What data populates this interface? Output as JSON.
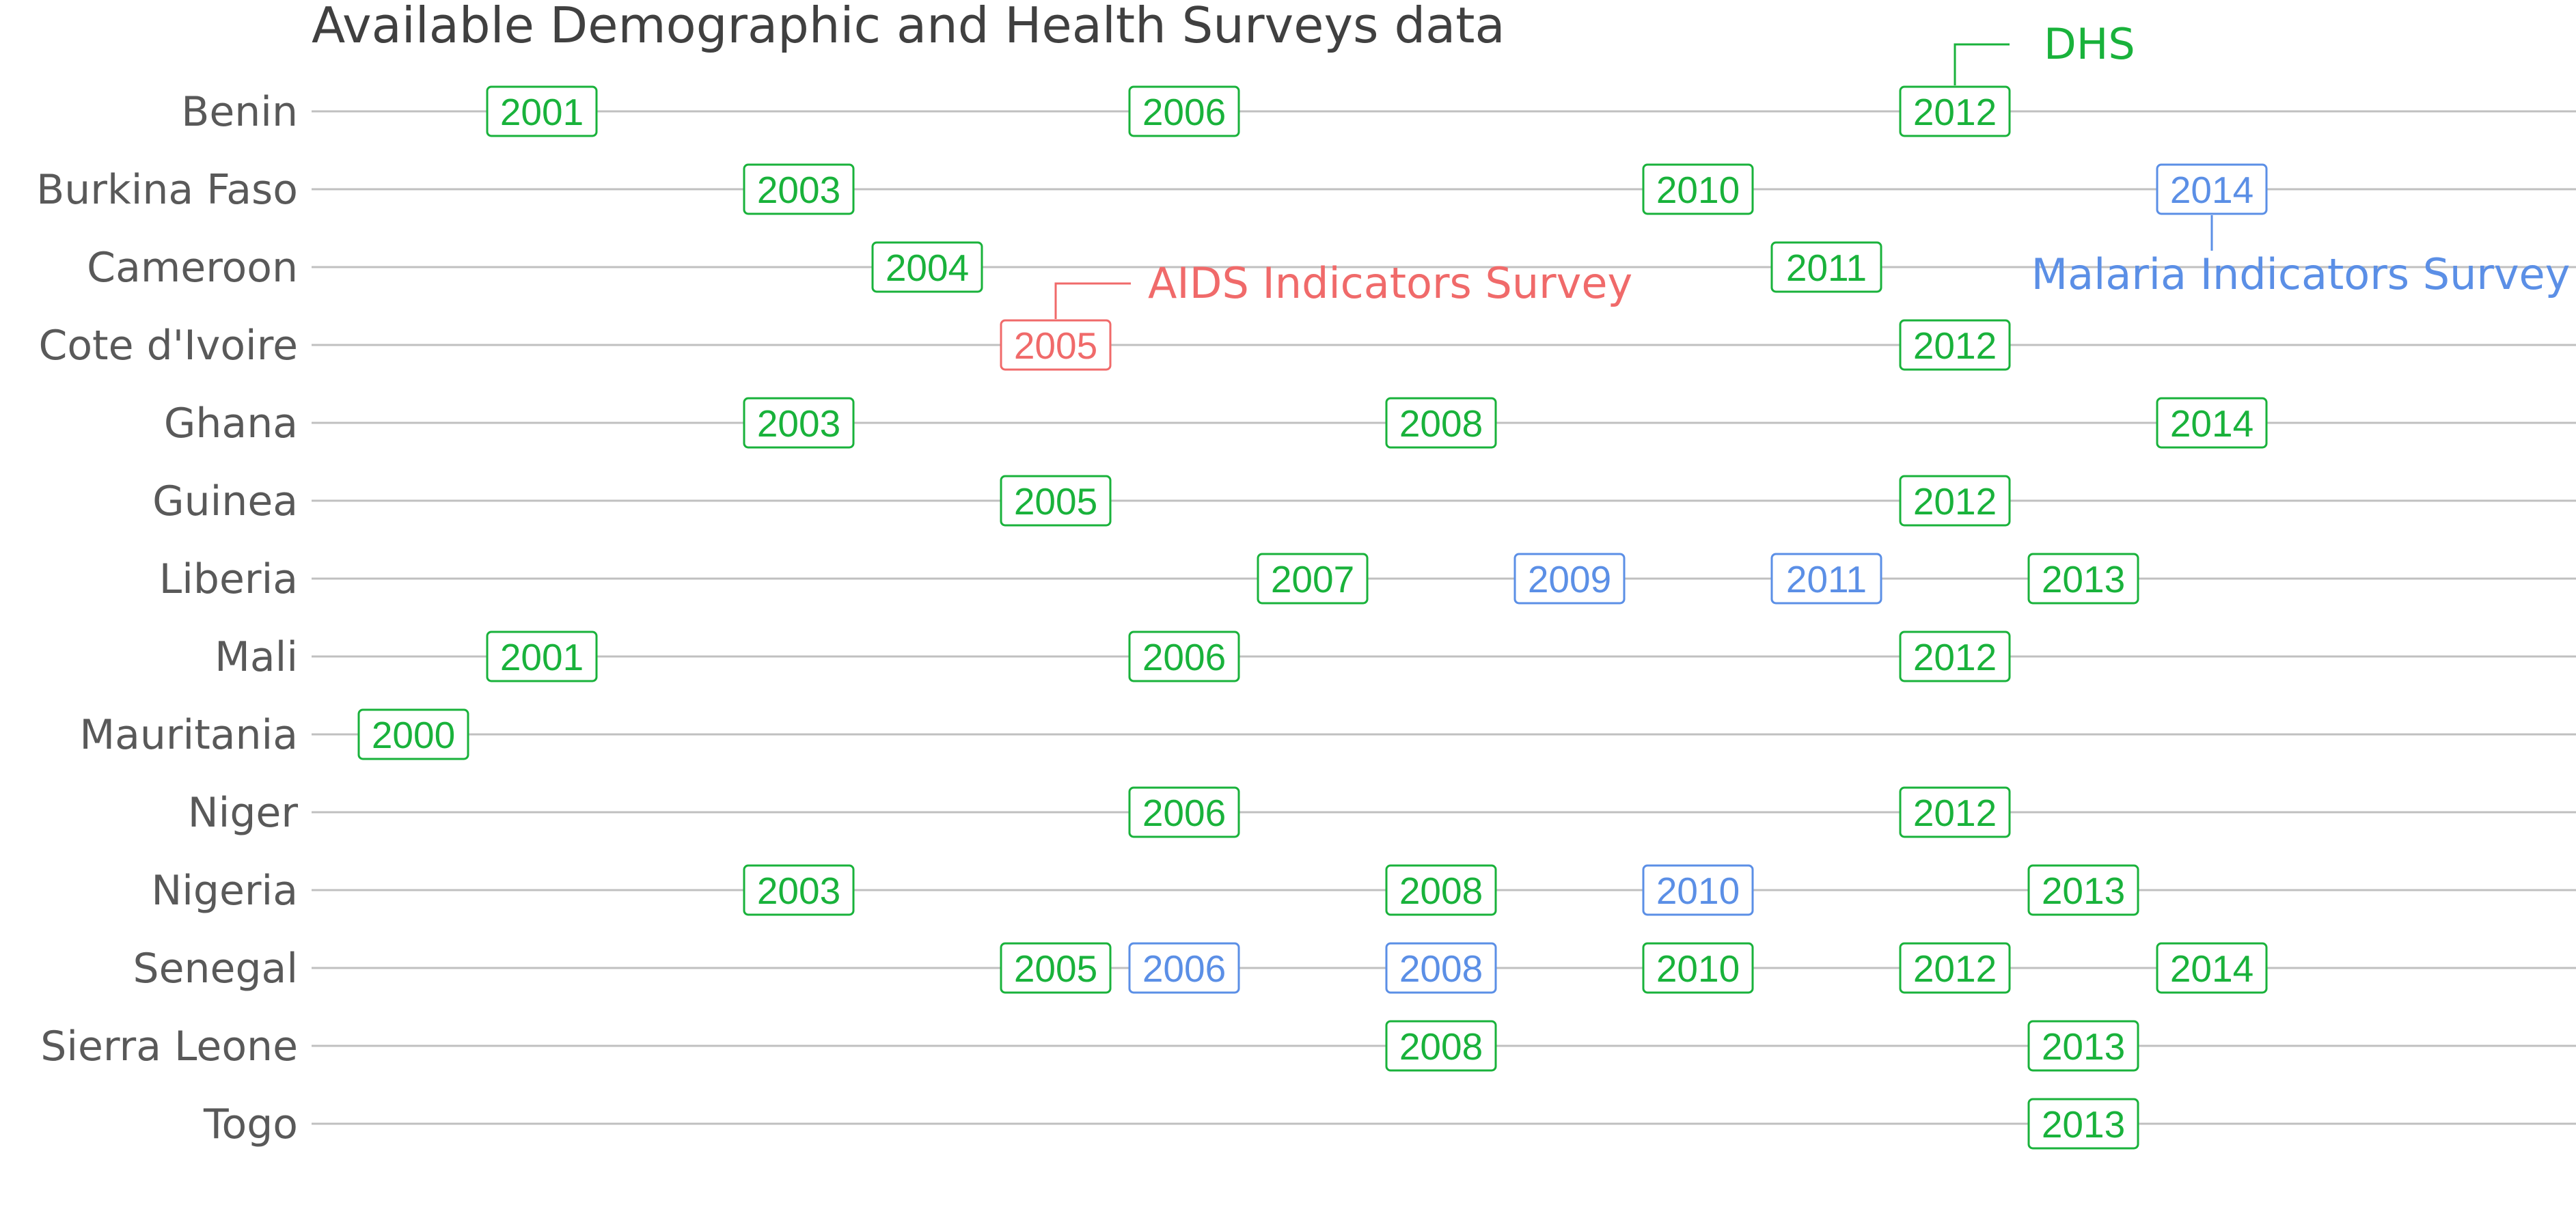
{
  "colors": {
    "dhs": "#19b23b",
    "ais": "#f06a6a",
    "mis": "#5b8fe6",
    "grid": "#c0c0c0",
    "label": "#595959",
    "title": "#404040"
  },
  "chart_data": {
    "type": "timeline",
    "title": "Available Demographic and Health Surveys data",
    "x_range": [
      2000,
      2015
    ],
    "grid": false,
    "legend": [
      {
        "key": "dhs",
        "label": "DHS",
        "placement": "above Benin 2012"
      },
      {
        "key": "ais",
        "label": "AIDS Indicators Survey",
        "placement": "beside Cote d'Ivoire 2005"
      },
      {
        "key": "mis",
        "label": "Malaria Indicators Survey",
        "placement": "below Burkina Faso 2014"
      }
    ],
    "rows": [
      {
        "country": "Benin",
        "surveys": [
          {
            "year": 2001,
            "type": "dhs"
          },
          {
            "year": 2006,
            "type": "dhs"
          },
          {
            "year": 2012,
            "type": "dhs"
          }
        ]
      },
      {
        "country": "Burkina Faso",
        "surveys": [
          {
            "year": 2003,
            "type": "dhs"
          },
          {
            "year": 2010,
            "type": "dhs"
          },
          {
            "year": 2014,
            "type": "mis"
          }
        ]
      },
      {
        "country": "Cameroon",
        "surveys": [
          {
            "year": 2004,
            "type": "dhs"
          },
          {
            "year": 2011,
            "type": "dhs"
          }
        ]
      },
      {
        "country": "Cote d'Ivoire",
        "surveys": [
          {
            "year": 2005,
            "type": "ais"
          },
          {
            "year": 2012,
            "type": "dhs"
          }
        ]
      },
      {
        "country": "Ghana",
        "surveys": [
          {
            "year": 2003,
            "type": "dhs"
          },
          {
            "year": 2008,
            "type": "dhs"
          },
          {
            "year": 2014,
            "type": "dhs"
          }
        ]
      },
      {
        "country": "Guinea",
        "surveys": [
          {
            "year": 2005,
            "type": "dhs"
          },
          {
            "year": 2012,
            "type": "dhs"
          }
        ]
      },
      {
        "country": "Liberia",
        "surveys": [
          {
            "year": 2007,
            "type": "dhs"
          },
          {
            "year": 2009,
            "type": "mis"
          },
          {
            "year": 2011,
            "type": "mis"
          },
          {
            "year": 2013,
            "type": "dhs"
          }
        ]
      },
      {
        "country": "Mali",
        "surveys": [
          {
            "year": 2001,
            "type": "dhs"
          },
          {
            "year": 2006,
            "type": "dhs"
          },
          {
            "year": 2012,
            "type": "dhs"
          }
        ]
      },
      {
        "country": "Mauritania",
        "surveys": [
          {
            "year": 2000,
            "type": "dhs"
          }
        ]
      },
      {
        "country": "Niger",
        "surveys": [
          {
            "year": 2006,
            "type": "dhs"
          },
          {
            "year": 2012,
            "type": "dhs"
          }
        ]
      },
      {
        "country": "Nigeria",
        "surveys": [
          {
            "year": 2003,
            "type": "dhs"
          },
          {
            "year": 2008,
            "type": "dhs"
          },
          {
            "year": 2010,
            "type": "mis"
          },
          {
            "year": 2013,
            "type": "dhs"
          }
        ]
      },
      {
        "country": "Senegal",
        "surveys": [
          {
            "year": 2005,
            "type": "dhs"
          },
          {
            "year": 2006,
            "type": "mis"
          },
          {
            "year": 2008,
            "type": "mis"
          },
          {
            "year": 2010,
            "type": "dhs"
          },
          {
            "year": 2012,
            "type": "dhs"
          },
          {
            "year": 2014,
            "type": "dhs"
          }
        ]
      },
      {
        "country": "Sierra Leone",
        "surveys": [
          {
            "year": 2008,
            "type": "dhs"
          },
          {
            "year": 2013,
            "type": "dhs"
          }
        ]
      },
      {
        "country": "Togo",
        "surveys": [
          {
            "year": 2013,
            "type": "dhs"
          }
        ]
      }
    ]
  }
}
